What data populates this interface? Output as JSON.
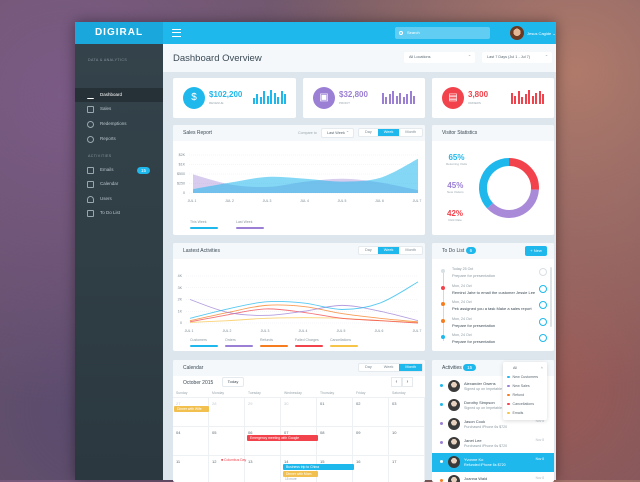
{
  "app": {
    "logo": "DIGIRAL",
    "search_placeholder": "Search",
    "user_name": "Jesus Cagide"
  },
  "sidebar": {
    "section1": "DATA & ANALYTICS",
    "section2": "ACTIVITIES",
    "items": [
      {
        "label": "Dashboard",
        "icon": "bar-chart-icon"
      },
      {
        "label": "Sales",
        "icon": "tag-icon"
      },
      {
        "label": "Redemptions",
        "icon": "dollar-circle-icon"
      },
      {
        "label": "Reports",
        "icon": "clock-icon"
      },
      {
        "label": "Emails",
        "icon": "envelope-icon",
        "badge": "15"
      },
      {
        "label": "Calendar",
        "icon": "calendar-icon"
      },
      {
        "label": "Users",
        "icon": "user-icon"
      },
      {
        "label": "To Do List",
        "icon": "checklist-icon"
      }
    ]
  },
  "header": {
    "title": "Dashboard Overview",
    "location": "All Locations",
    "range": "Last 7 Days (Jul 1 - Jul 7)"
  },
  "stats": [
    {
      "value": "$102,200",
      "label": "REVENUE",
      "color": "#1fb8ec",
      "icon": "money-bag-icon",
      "bars": [
        4,
        7,
        5,
        9,
        6,
        10,
        8,
        5,
        9,
        7
      ]
    },
    {
      "value": "$32,800",
      "label": "PROFIT",
      "color": "#9b7fd4",
      "icon": "cash-register-icon",
      "bars": [
        8,
        5,
        7,
        9,
        6,
        8,
        5,
        7,
        9,
        6
      ]
    },
    {
      "value": "3,800",
      "label": "ORDERS",
      "color": "#f2424b",
      "icon": "clipboard-icon",
      "bars": [
        8,
        6,
        9,
        5,
        7,
        10,
        6,
        8,
        9,
        7
      ]
    }
  ],
  "segments": [
    "Day",
    "Week",
    "Month"
  ],
  "sales": {
    "title": "Sales Report",
    "compare_label": "Compare to",
    "compare_value": "Last Week",
    "active": "Week"
  },
  "visitors": {
    "title": "Visitor Statistics",
    "stats": [
      {
        "value": "65%",
        "label": "Returning Visits",
        "color": "#1fb8ec"
      },
      {
        "value": "45%",
        "label": "New Visitors",
        "color": "#9b7fd4"
      },
      {
        "value": "42%",
        "label": "Click Rate",
        "color": "#f2424b"
      }
    ],
    "donut": [
      {
        "fraction": 0.26,
        "color": "#f2424b"
      },
      {
        "fraction": 0.37,
        "color": "#a98ad9"
      },
      {
        "fraction": 0.37,
        "color": "#1fb8ec"
      }
    ]
  },
  "activities_chart": {
    "title": "Lastest Activities",
    "active": "Week"
  },
  "chart_data": [
    {
      "type": "area",
      "title": "Sales Report",
      "categories": [
        "JUL 1",
        "JUL 2",
        "JUL 3",
        "JUL 4",
        "JUL 5",
        "JUL 6",
        "JUL 7"
      ],
      "yticks": [
        "0",
        "$250",
        "$500",
        "$1K",
        "$2K"
      ],
      "ytick_values": [
        0,
        250,
        500,
        1000,
        2000
      ],
      "grid": true,
      "legend": "bottom-left",
      "series": [
        {
          "name": "This Week",
          "color": "#1fb8ec",
          "values": [
            100,
            275,
            425,
            375,
            300,
            400,
            1600
          ]
        },
        {
          "name": "Last Week",
          "color": "#9b7fd4",
          "values": [
            490,
            225,
            160,
            300,
            375,
            275,
            75
          ]
        }
      ]
    },
    {
      "type": "line",
      "title": "Lastest Activities",
      "categories": [
        "JUL 1",
        "JUL 2",
        "JUL 3",
        "JUL 4",
        "JUL 5",
        "JUL 6",
        "JUL 7"
      ],
      "yticks": [
        "0",
        "1K",
        "2K",
        "3K",
        "4K"
      ],
      "ylim": [
        0,
        4000
      ],
      "grid": true,
      "legend": "bottom-left",
      "series": [
        {
          "name": "Customers",
          "color": "#1fb8ec",
          "values": [
            400,
            1200,
            1800,
            1700,
            1150,
            1700,
            3500
          ]
        },
        {
          "name": "Orders",
          "color": "#9b7fd4",
          "values": [
            2000,
            900,
            650,
            1000,
            1500,
            1000,
            200
          ]
        },
        {
          "name": "Refunds",
          "color": "#f57c1f",
          "values": [
            200,
            900,
            1500,
            1400,
            800,
            400,
            100
          ]
        },
        {
          "name": "Failed Charges",
          "color": "#f2424b",
          "values": [
            100,
            700,
            1200,
            900,
            400,
            200,
            0
          ]
        },
        {
          "name": "Cancellations",
          "color": "#f7c44a",
          "values": [
            50,
            200,
            400,
            450,
            400,
            200,
            50
          ]
        }
      ]
    }
  ],
  "todo": {
    "title": "To Do List",
    "count": "6",
    "new_label": "+ New",
    "items": [
      {
        "date": "Today 25 Oct",
        "text": "Prepare for presentation",
        "color": "#d8e0e5",
        "done": true
      },
      {
        "date": "Mon, 24 Oct",
        "text": "Remind Jahe to email the customer Jessie Lee",
        "color": "#f2424b"
      },
      {
        "date": "Mon, 24 Oct",
        "text": "Pek assigned you a task Make a sales report",
        "color": "#f57c1f"
      },
      {
        "date": "Mon, 24 Oct",
        "text": "Prepare for presentation",
        "color": "#f57c1f"
      },
      {
        "date": "Mon, 24 Oct",
        "text": "Prepare for presentation",
        "color": "#1fb8ec"
      }
    ]
  },
  "calendar": {
    "title": "Calendar",
    "active": "Month",
    "month": "October 2015",
    "today": "Today",
    "prev": "‹",
    "next": "›",
    "days": [
      "Sunday",
      "Monday",
      "Tuesday",
      "Wednesday",
      "Thursday",
      "Friday",
      "Saturday"
    ],
    "weeks": [
      [
        "27",
        "28",
        "29",
        "30",
        "01",
        "02",
        "03"
      ],
      [
        "04",
        "05",
        "06",
        "07",
        "08",
        "09",
        "10"
      ],
      [
        "11",
        "12",
        "13",
        "14",
        "15",
        "16",
        "17"
      ]
    ],
    "holiday": "Columbus Day",
    "more": "15 more",
    "events": [
      {
        "text": "Dinner with Wife",
        "color": "#f2c04e"
      },
      {
        "text": "Emergency meeting with Google",
        "color": "#f2424b"
      },
      {
        "text": "Business trip to China",
        "color": "#1fb8ec"
      },
      {
        "text": "Dinner with Mom",
        "color": "#f2c04e"
      }
    ]
  },
  "activities": {
    "title": "Activities",
    "count": "15",
    "filter": {
      "selected": "All",
      "options": [
        {
          "label": "New Customers",
          "color": "#1fb8ec"
        },
        {
          "label": "New Sales",
          "color": "#9b7fd4"
        },
        {
          "label": "Refund",
          "color": "#f57c1f"
        },
        {
          "label": "Cancellations",
          "color": "#f2424b"
        },
        {
          "label": "Emails",
          "color": "#f7c44a"
        }
      ]
    },
    "items": [
      {
        "name": "Alexander Owens",
        "msg": "Signed up on Impetable",
        "time": "",
        "color": "#1fb8ec"
      },
      {
        "name": "Dorothy Simpson",
        "msg": "Signed up on Impetable",
        "time": "",
        "color": "#1fb8ec"
      },
      {
        "name": "Jason Cook",
        "msg": "Purchased iPhone 6s $720",
        "time": "Nov 8",
        "color": "#9b7fd4"
      },
      {
        "name": "Janet Lee",
        "msg": "Purchased iPhone 6s $720",
        "time": "Nov 8",
        "color": "#9b7fd4"
      },
      {
        "name": "Yvonne Ko",
        "msg": "Refunded iPhone 6s $720",
        "time": "Nov 8",
        "color": "#ffffff",
        "selected": true
      },
      {
        "name": "Joanna Wald",
        "msg": "",
        "time": "Nov 8",
        "color": "#f57c1f"
      }
    ]
  }
}
